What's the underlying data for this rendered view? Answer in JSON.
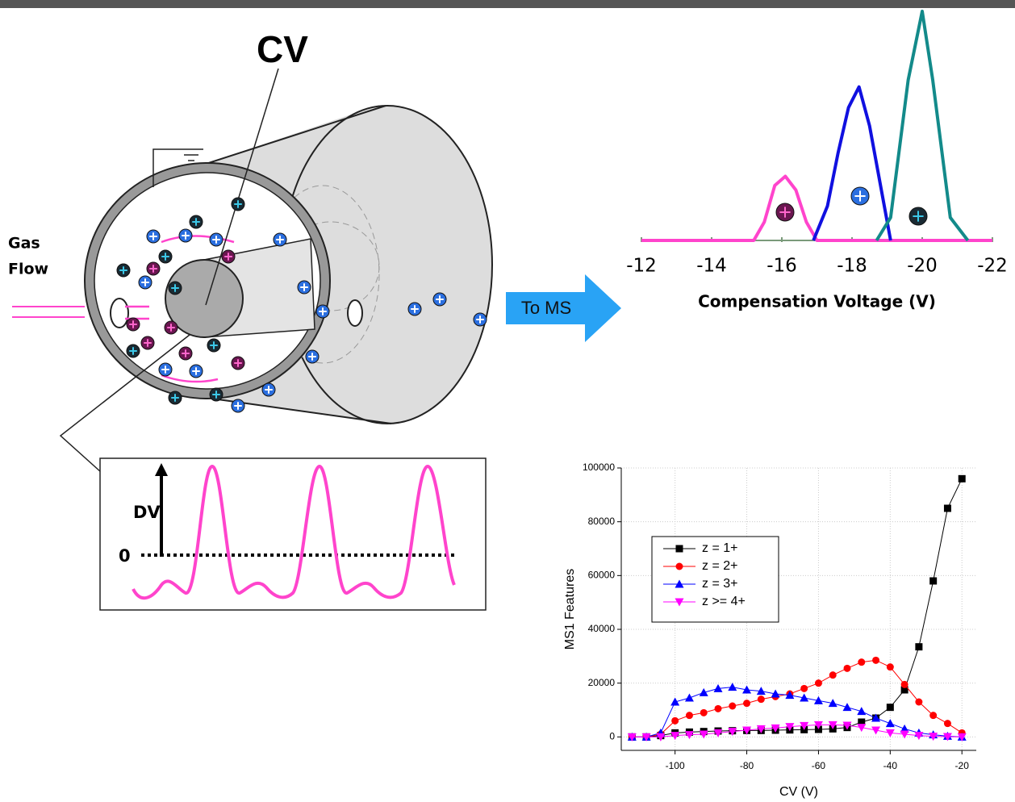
{
  "diagram": {
    "cv_label": "CV",
    "gas_flow": [
      "Gas",
      "Flow"
    ],
    "arrow_label": "To MS",
    "dv_label": "DV",
    "zero_label": "0"
  },
  "chart_data": [
    {
      "type": "line",
      "xlabel": "Compensation Voltage (V)",
      "xlim": [
        -12,
        -22
      ],
      "xticks": [
        -12,
        -14,
        -16,
        -18,
        -20,
        -22
      ],
      "ylim": [
        0,
        100
      ],
      "series": [
        {
          "color": "#ff44cc",
          "x": [
            -12,
            -15.2,
            -15.5,
            -15.8,
            -16.1,
            -16.4,
            -16.7,
            -17,
            -22
          ],
          "values": [
            0,
            0,
            8,
            24,
            28,
            22,
            8,
            0,
            0
          ]
        },
        {
          "color": "#1010e0",
          "x": [
            -16.9,
            -17.3,
            -17.6,
            -17.9,
            -18.2,
            -18.5,
            -18.8,
            -19.1
          ],
          "values": [
            0,
            15,
            38,
            58,
            67,
            50,
            25,
            0
          ]
        },
        {
          "color": "#138a8a",
          "x": [
            -18.7,
            -19.1,
            -19.6,
            -20,
            -20.3,
            -20.8,
            -21.3
          ],
          "values": [
            0,
            10,
            70,
            100,
            70,
            10,
            0
          ]
        }
      ]
    },
    {
      "type": "line",
      "xlabel": "CV (V)",
      "ylabel": "MS1 Features",
      "x": [
        -112,
        -108,
        -104,
        -100,
        -96,
        -92,
        -88,
        -84,
        -80,
        -76,
        -72,
        -68,
        -64,
        -60,
        -56,
        -52,
        -48,
        -44,
        -40,
        -36,
        -32,
        -28,
        -24,
        -20
      ],
      "xlim": [
        -115,
        -16
      ],
      "xticks": [
        -100,
        -80,
        -60,
        -40,
        -20
      ],
      "ylim": [
        -5000,
        100000
      ],
      "yticks": [
        0,
        20000,
        40000,
        60000,
        80000,
        100000
      ],
      "grid": true,
      "series": [
        {
          "name": "z = 1+",
          "color": "#000000",
          "marker": "square",
          "values": [
            0,
            0,
            500,
            1500,
            1800,
            2000,
            2200,
            2300,
            2400,
            2400,
            2500,
            2600,
            2700,
            2800,
            3000,
            3500,
            5500,
            7000,
            11000,
            17500,
            33500,
            58000,
            85000,
            96000
          ]
        },
        {
          "name": "z = 2+",
          "color": "#ff0000",
          "marker": "circle",
          "values": [
            0,
            0,
            1000,
            6000,
            8000,
            9000,
            10500,
            11500,
            12500,
            14000,
            15000,
            16000,
            18000,
            20000,
            23000,
            25500,
            27800,
            28500,
            26000,
            19500,
            13000,
            8000,
            5000,
            1500
          ]
        },
        {
          "name": "z = 3+",
          "color": "#0000ff",
          "marker": "triangle-up",
          "values": [
            0,
            0,
            1500,
            13000,
            14500,
            16500,
            18000,
            18500,
            17500,
            17000,
            16000,
            15500,
            14500,
            13500,
            12500,
            11000,
            9500,
            7000,
            5000,
            3000,
            1500,
            800,
            300,
            0
          ]
        },
        {
          "name": "z >= 4+",
          "color": "#ff00ff",
          "marker": "triangle-down",
          "values": [
            0,
            0,
            0,
            500,
            800,
            1000,
            1500,
            2000,
            2500,
            3000,
            3300,
            3800,
            4200,
            4500,
            4500,
            4300,
            3500,
            2500,
            1500,
            1000,
            500,
            200,
            100,
            0
          ]
        }
      ]
    }
  ]
}
